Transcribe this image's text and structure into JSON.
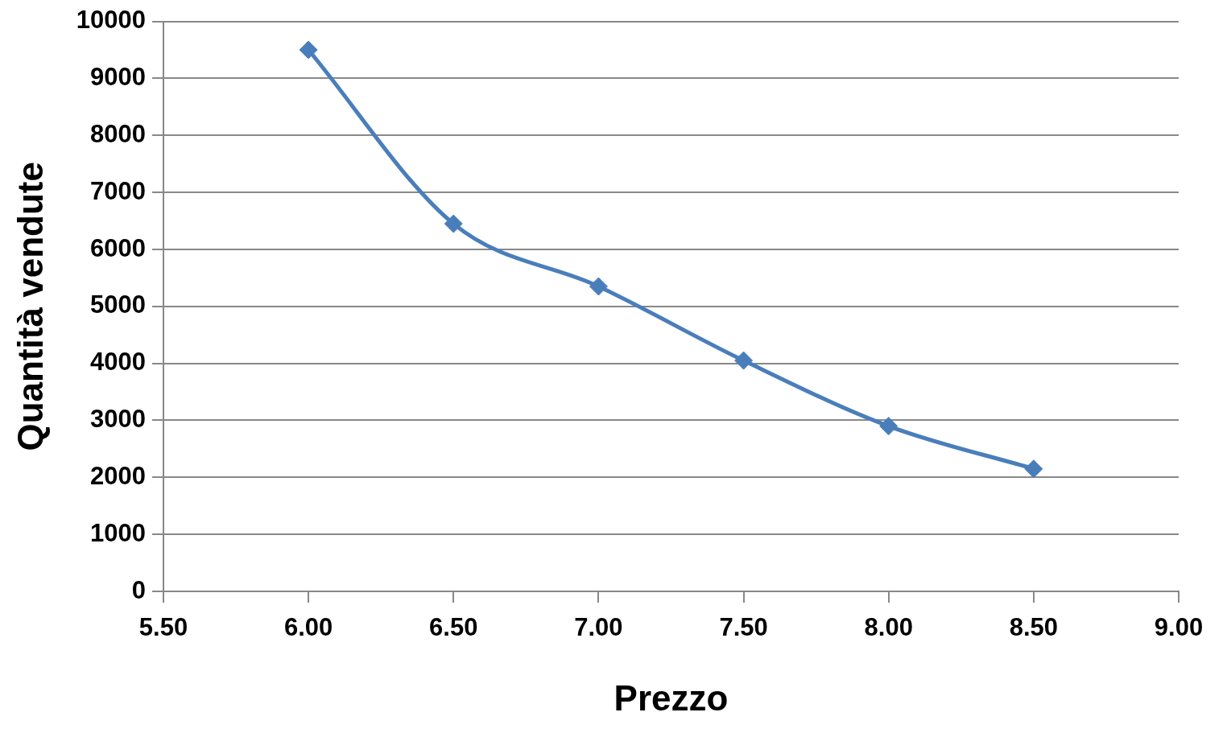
{
  "chart_data": {
    "type": "line",
    "xlabel": "Prezzo",
    "ylabel": "Quantità vendute",
    "x": [
      6.0,
      6.5,
      7.0,
      7.5,
      8.0,
      8.5
    ],
    "series": [
      {
        "color": "#4a7ebb",
        "values": [
          9500,
          6450,
          5350,
          4050,
          2900,
          2150
        ]
      }
    ],
    "xlim": [
      5.5,
      9.0
    ],
    "xticks": [
      {
        "value": 5.5,
        "label": "5.50"
      },
      {
        "value": 6.0,
        "label": "6.00"
      },
      {
        "value": 6.5,
        "label": "6.50"
      },
      {
        "value": 7.0,
        "label": "7.00"
      },
      {
        "value": 7.5,
        "label": "7.50"
      },
      {
        "value": 8.0,
        "label": "8.00"
      },
      {
        "value": 8.5,
        "label": "8.50"
      },
      {
        "value": 9.0,
        "label": "9.00"
      }
    ],
    "ylim": [
      0,
      10000
    ],
    "yticks": [
      0,
      1000,
      2000,
      3000,
      4000,
      5000,
      6000,
      7000,
      8000,
      9000,
      10000
    ],
    "grid": "y",
    "legend": false,
    "marker": "diamond",
    "line_style": "solid"
  }
}
